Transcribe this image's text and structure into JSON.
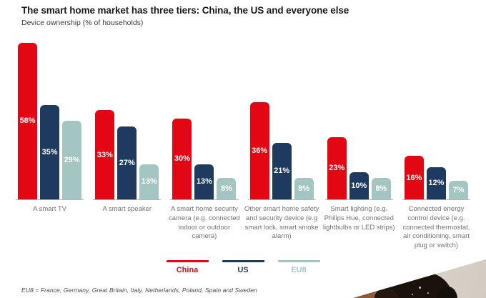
{
  "header": {
    "title": "The smart home market has three tiers: China, the US and everyone else",
    "subtitle": "Device ownership (% of households)"
  },
  "chart_data": {
    "type": "bar",
    "categories": [
      "A smart TV",
      "A smart speaker",
      "A smart home security camera (e.g. connected indoor or outdoor camera)",
      "Other smart home safety and security device (e.g smart lock, smart smoke alarm)",
      "Smart lighting (e.g. Philips Hue, connected lightbulbs or LED strips)",
      "Connected energy control device (e.g. connected thermostat, air conditioning, smart plug or switch)"
    ],
    "series": [
      {
        "name": "China",
        "color": "#e30613",
        "values": [
          58,
          33,
          30,
          36,
          23,
          16
        ]
      },
      {
        "name": "US",
        "color": "#1e3a5f",
        "values": [
          35,
          27,
          13,
          21,
          10,
          12
        ]
      },
      {
        "name": "EU8",
        "color": "#a3c6c3",
        "values": [
          29,
          13,
          8,
          8,
          8,
          7
        ]
      }
    ],
    "value_suffix": "%",
    "ylim": [
      0,
      60
    ],
    "grid": false,
    "legend_position": "bottom",
    "value_labels": "centered-inside-bars"
  },
  "footnote": "EU8 = France, Germany, Great Britain, Italy, Netherlands, Poland, Spain and Sweden",
  "decoration": {
    "corner_photo": {
      "description": "partial photo of a person with dark curly hair against a beige wall, bottom-right corner",
      "background_color": "#d4cdc3",
      "hair_color": "#19120d",
      "skin_color": "#8f5a3b"
    }
  }
}
